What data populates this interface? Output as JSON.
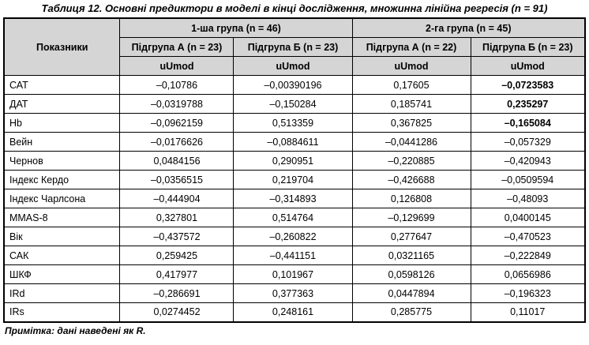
{
  "title": "Таблиця 12. Основні предиктори в моделі в кінці дослідження, множинна лінійна регресія (n = 91)",
  "table": {
    "indicators_header": "Показники",
    "groups": [
      {
        "label": "1-ша група (n = 46)",
        "subgroups": [
          "Підгрупа А (n = 23)",
          "Підгрупа Б (n = 23)"
        ]
      },
      {
        "label": "2-га група (n = 45)",
        "subgroups": [
          "Підгрупа А (n = 22)",
          "Підгрупа Б (n = 23)"
        ]
      }
    ],
    "measure_label": "uUmod",
    "rows": [
      {
        "label": "САТ",
        "values": [
          "–0,10786",
          "–0,00390196",
          "0,17605",
          "–0,0723583"
        ],
        "bold": [
          false,
          false,
          false,
          true
        ]
      },
      {
        "label": "ДАТ",
        "values": [
          "–0,0319788",
          "–0,150284",
          "0,185741",
          "0,235297"
        ],
        "bold": [
          false,
          false,
          false,
          true
        ]
      },
      {
        "label": "Hb",
        "values": [
          "–0,0962159",
          "0,513359",
          "0,367825",
          "–0,165084"
        ],
        "bold": [
          false,
          false,
          false,
          true
        ]
      },
      {
        "label": "Вейн",
        "values": [
          "–0,0176626",
          "–0,0884611",
          "–0,0441286",
          "–0,057329"
        ],
        "bold": [
          false,
          false,
          false,
          false
        ]
      },
      {
        "label": "Чернов",
        "values": [
          "0,0484156",
          "0,290951",
          "–0,220885",
          "–0,420943"
        ],
        "bold": [
          false,
          false,
          false,
          false
        ]
      },
      {
        "label": "Індекс Кердо",
        "values": [
          "–0,0356515",
          "0,219704",
          "–0,426688",
          "–0,0509594"
        ],
        "bold": [
          false,
          false,
          false,
          false
        ]
      },
      {
        "label": "Індекс Чарлсона",
        "values": [
          "–0,444904",
          "–0,314893",
          "0,126808",
          "–0,48093"
        ],
        "bold": [
          false,
          false,
          false,
          false
        ]
      },
      {
        "label": "MMAS-8",
        "values": [
          "0,327801",
          "0,514764",
          "–0,129699",
          "0,0400145"
        ],
        "bold": [
          false,
          false,
          false,
          false
        ]
      },
      {
        "label": "Вік",
        "values": [
          "–0,437572",
          "–0,260822",
          "0,277647",
          "–0,470523"
        ],
        "bold": [
          false,
          false,
          false,
          false
        ]
      },
      {
        "label": "САК",
        "values": [
          "0,259425",
          "–0,441151",
          "0,0321165",
          "–0,222849"
        ],
        "bold": [
          false,
          false,
          false,
          false
        ]
      },
      {
        "label": "ШКФ",
        "values": [
          "0,417977",
          "0,101967",
          "0,0598126",
          "0,0656986"
        ],
        "bold": [
          false,
          false,
          false,
          false
        ]
      },
      {
        "label": "IRd",
        "values": [
          "–0,286691",
          "0,377363",
          "0,0447894",
          "–0,196323"
        ],
        "bold": [
          false,
          false,
          false,
          false
        ]
      },
      {
        "label": "IRs",
        "values": [
          "0,0274452",
          "0,248161",
          "0,285775",
          "0,11017"
        ],
        "bold": [
          false,
          false,
          false,
          false
        ]
      }
    ]
  },
  "note": "Примітка: дані наведені як R.",
  "colors": {
    "header_bg": "#d5d5d6",
    "border": "#000000",
    "text": "#000000",
    "background": "#ffffff"
  }
}
